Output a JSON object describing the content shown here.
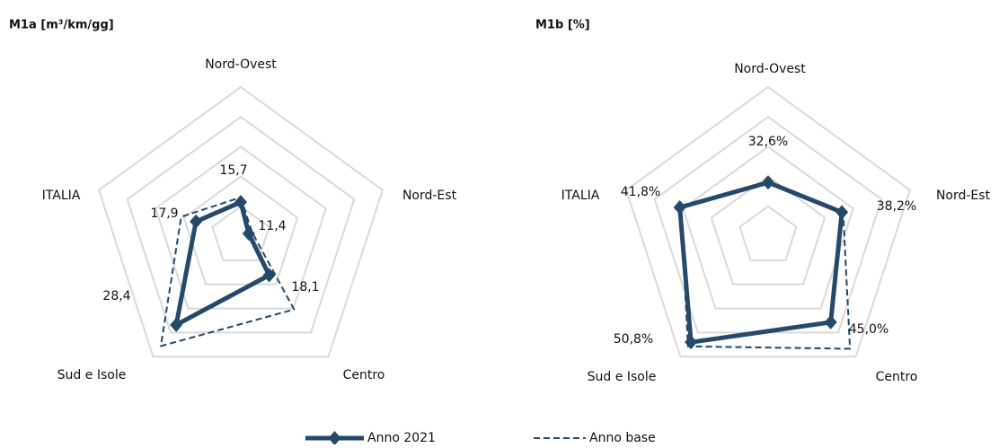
{
  "chart_data": [
    {
      "type": "radar",
      "title": "M1a [m³/km/gg]",
      "categories": [
        "Nord-Ovest",
        "Nord-Est",
        "Centro",
        "Sud e Isole",
        "ITALIA"
      ],
      "rlim": [
        10,
        35
      ],
      "rticks": [
        10,
        15,
        20,
        25,
        30,
        35
      ],
      "grid": true,
      "series": [
        {
          "name": "Anno 2021",
          "color": "#24496a",
          "style": "solid",
          "values": [
            15.7,
            11.4,
            18.1,
            28.4,
            17.9
          ],
          "value_labels": [
            "15,7",
            "11,4",
            "18,1",
            "28,4",
            "17,9"
          ]
        },
        {
          "name": "Anno base",
          "color": "#24496a",
          "style": "dashed",
          "values": [
            16.5,
            12,
            25.2,
            32.8,
            20.5
          ]
        }
      ]
    },
    {
      "type": "radar",
      "title": "M1b [%]",
      "categories": [
        "Nord-Ovest",
        "Nord-Est",
        "Centro",
        "Sud e Isole",
        "ITALIA"
      ],
      "rlim": [
        20,
        55
      ],
      "rticks": [
        20,
        27,
        34,
        41,
        48,
        55
      ],
      "grid": true,
      "series": [
        {
          "name": "Anno 2021",
          "color": "#24496a",
          "style": "solid",
          "values": [
            32.6,
            38.2,
            45.0,
            50.8,
            41.8
          ],
          "value_labels": [
            "32,6%",
            "38,2%",
            "45,0%",
            "50,8%",
            "41,8%"
          ]
        },
        {
          "name": "Anno base",
          "color": "#24496a",
          "style": "dashed",
          "values": [
            32.6,
            38.5,
            52.7,
            52,
            41.5
          ]
        }
      ]
    }
  ]
}
